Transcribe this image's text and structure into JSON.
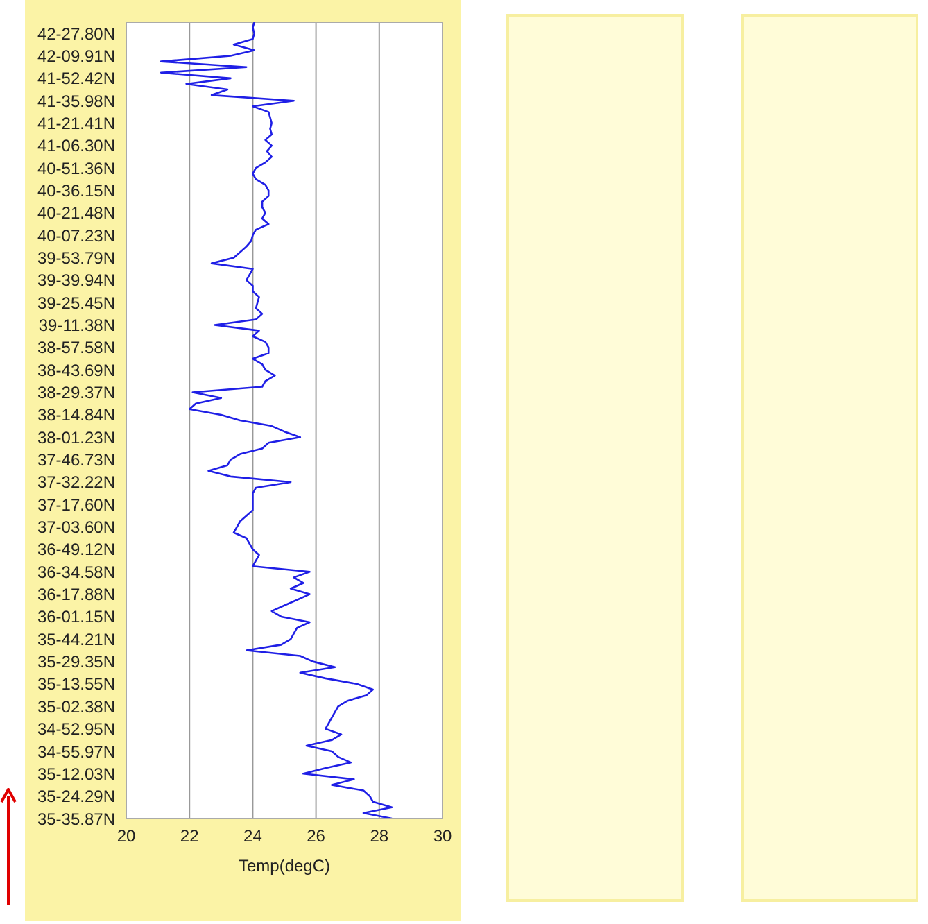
{
  "chart_data": {
    "type": "line",
    "orientation": "horizontal",
    "xlabel": "Temp(degC)",
    "color": "#1f1fe6",
    "xlim": [
      20,
      30
    ],
    "xticks": [
      20,
      22,
      24,
      26,
      28,
      30
    ],
    "grid": "x",
    "categories": [
      null,
      null,
      "42-27.80N",
      null,
      null,
      null,
      "42-09.91N",
      null,
      null,
      null,
      "41-52.42N",
      null,
      null,
      null,
      "41-35.98N",
      null,
      null,
      null,
      "41-21.41N",
      null,
      null,
      null,
      "41-06.30N",
      null,
      null,
      null,
      "40-51.36N",
      null,
      null,
      null,
      "40-36.15N",
      null,
      null,
      null,
      "40-21.48N",
      null,
      null,
      null,
      "40-07.23N",
      null,
      null,
      null,
      "39-53.79N",
      null,
      null,
      null,
      "39-39.94N",
      null,
      null,
      null,
      "39-25.45N",
      null,
      null,
      null,
      "39-11.38N",
      null,
      null,
      null,
      "38-57.58N",
      null,
      null,
      null,
      "38-43.69N",
      null,
      null,
      null,
      "38-29.37N",
      null,
      null,
      null,
      "38-14.84N",
      null,
      null,
      null,
      "38-01.23N",
      null,
      null,
      null,
      "37-46.73N",
      null,
      null,
      null,
      "37-32.22N",
      null,
      null,
      null,
      "37-17.60N",
      null,
      null,
      null,
      "37-03.60N",
      null,
      null,
      null,
      "36-49.12N",
      null,
      null,
      null,
      "36-34.58N",
      null,
      null,
      null,
      "36-17.88N",
      null,
      null,
      null,
      "36-01.15N",
      null,
      null,
      null,
      "35-44.21N",
      null,
      null,
      null,
      "35-29.35N",
      null,
      null,
      null,
      "35-13.55N",
      null,
      null,
      null,
      "35-02.38N",
      null,
      null,
      null,
      "34-52.95N",
      null,
      null,
      null,
      "34-55.97N",
      null,
      null,
      null,
      "35-12.03N",
      null,
      null,
      null,
      "35-24.29N",
      null,
      null,
      null,
      "35-35.87N"
    ],
    "values": [
      24.05,
      24.0,
      24.05,
      24.0,
      23.4,
      24.05,
      23.3,
      21.1,
      23.8,
      21.1,
      23.3,
      21.9,
      23.2,
      22.7,
      25.3,
      24.0,
      24.5,
      24.55,
      24.6,
      24.55,
      24.6,
      24.4,
      24.6,
      24.45,
      24.6,
      24.4,
      24.1,
      24.0,
      24.1,
      24.4,
      24.5,
      24.5,
      24.3,
      24.3,
      24.4,
      24.3,
      24.5,
      24.1,
      24.0,
      23.95,
      23.8,
      23.6,
      23.4,
      22.7,
      24.0,
      23.9,
      23.8,
      24.0,
      24.0,
      24.2,
      24.15,
      24.1,
      24.3,
      24.1,
      22.8,
      24.2,
      24.0,
      24.4,
      24.5,
      24.5,
      24.0,
      24.3,
      24.4,
      24.7,
      24.4,
      24.3,
      22.1,
      23.0,
      22.2,
      22.0,
      23.0,
      23.6,
      24.6,
      25.0,
      25.5,
      24.5,
      24.3,
      23.6,
      23.3,
      23.2,
      22.6,
      23.3,
      25.2,
      24.1,
      24.0,
      24.0,
      24.0,
      24.0,
      23.8,
      23.6,
      23.5,
      23.4,
      23.8,
      23.9,
      24.0,
      24.2,
      24.1,
      24.0,
      25.8,
      25.3,
      25.6,
      25.2,
      25.8,
      25.4,
      25.0,
      24.6,
      24.9,
      25.8,
      25.4,
      25.3,
      25.2,
      24.9,
      23.8,
      25.5,
      25.9,
      26.6,
      25.5,
      26.3,
      27.3,
      27.8,
      27.6,
      27.0,
      26.7,
      26.6,
      26.5,
      26.4,
      26.3,
      26.8,
      26.5,
      25.7,
      26.5,
      26.7,
      27.1,
      26.3,
      25.6,
      27.2,
      26.5,
      27.5,
      27.7,
      27.8,
      28.4,
      27.5,
      28.4
    ]
  }
}
